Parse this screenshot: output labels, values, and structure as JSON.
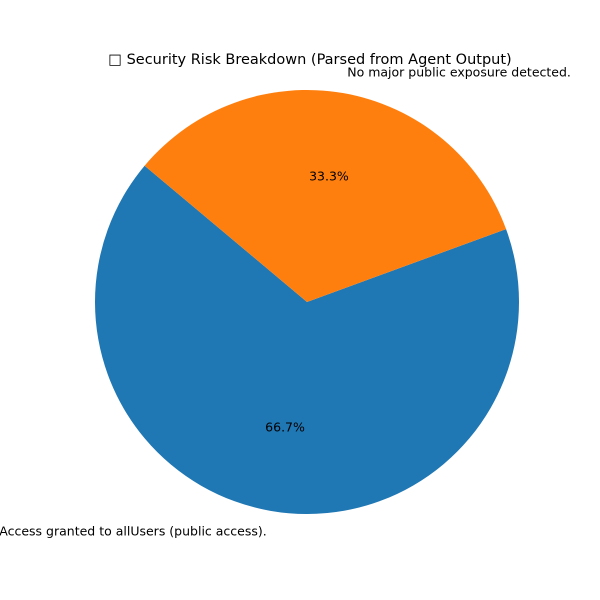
{
  "chart_data": {
    "type": "pie",
    "title": "□ Security Risk Breakdown (Parsed from Agent Output)",
    "start_angle_deg": 140,
    "counterclockwise": true,
    "slices": [
      {
        "label": "Access granted to allUsers (public access).",
        "value": 66.7,
        "pct_label": "66.7%",
        "color": "#1f77b4"
      },
      {
        "label": "No major public exposure detected.",
        "value": 33.3,
        "pct_label": "33.3%",
        "color": "#ff7f0e"
      }
    ],
    "legend": "none",
    "grid": false
  }
}
